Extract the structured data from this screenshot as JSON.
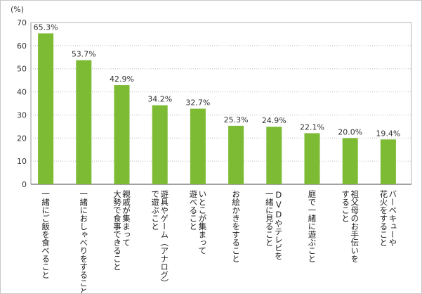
{
  "chart_data": {
    "type": "bar",
    "unit_label": "(%)",
    "ylim": [
      0,
      70
    ],
    "yticks": [
      0,
      10,
      20,
      30,
      40,
      50,
      60,
      70
    ],
    "bar_color": "#7dbb35",
    "categories": [
      [
        "一緒にご飯を食べること"
      ],
      [
        "一緒におしゃべりをすること"
      ],
      [
        "親戚が集まって",
        "大勢で食事できること"
      ],
      [
        "遊具やゲーム（アナログ）",
        "で遊ぶこと"
      ],
      [
        "いとこが集まって",
        "遊べること"
      ],
      [
        "お絵かきをすること"
      ],
      [
        "DVDやテレビを",
        "一緒に見ること"
      ],
      [
        "庭で一緒に遊ぶこと"
      ],
      [
        "祖父母のお手伝いを",
        "すること"
      ],
      [
        "バーベキューや",
        "花火をすること"
      ]
    ],
    "values": [
      65.3,
      53.7,
      42.9,
      34.2,
      32.7,
      25.3,
      24.9,
      22.1,
      20.0,
      19.4
    ],
    "value_labels": [
      "65.3%",
      "53.7%",
      "42.9%",
      "34.2%",
      "32.7%",
      "25.3%",
      "24.9%",
      "22.1%",
      "20.0%",
      "19.4%"
    ]
  }
}
